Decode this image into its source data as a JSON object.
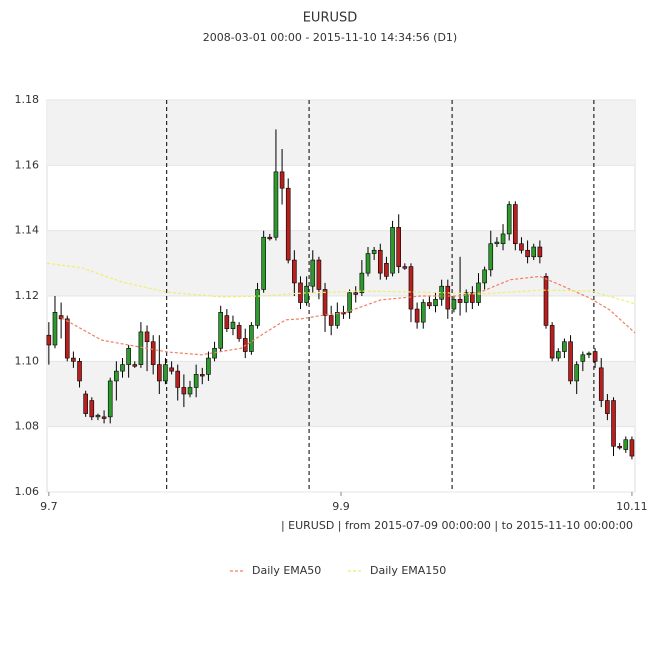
{
  "chart_data": {
    "type": "candlestick",
    "title": "EURUSD",
    "subtitle": "2008-03-01 00:00 - 2015-11-10 14:34:56 (D1)",
    "footer": "| EURUSD | from 2015-07-09 00:00:00 | to 2015-11-10 00:00:00",
    "xlim": [
      -0.3,
      95.5
    ],
    "xticks": [
      {
        "value": 0,
        "label": "9.7"
      },
      {
        "value": 47.6,
        "label": "9.9"
      },
      {
        "value": 95,
        "label": "10.11"
      }
    ],
    "ylim": [
      1.06,
      1.18
    ],
    "yticks": [
      1.06,
      1.08,
      {
        "value": 1.1,
        "label": "1.10"
      },
      1.12,
      1.14,
      1.16,
      1.18
    ],
    "band_grid": true,
    "vlines": [
      19.2,
      42.4,
      65.7,
      88.8
    ],
    "up_color": "#2e9a2e",
    "down_color": "#b82020",
    "open": [
      1.108,
      1.105,
      1.114,
      1.113,
      1.101,
      1.1,
      1.09,
      1.088,
      1.083,
      1.083,
      1.083,
      1.094,
      1.097,
      1.099,
      1.099,
      1.099,
      1.109,
      1.106,
      1.099,
      1.094,
      1.098,
      1.097,
      1.092,
      1.09,
      1.092,
      1.096,
      1.096,
      1.101,
      1.104,
      1.114,
      1.11,
      1.111,
      1.107,
      1.103,
      1.111,
      1.122,
      1.138,
      1.138,
      1.158,
      1.153,
      1.131,
      1.124,
      1.118,
      1.123,
      1.131,
      1.122,
      1.114,
      1.111,
      1.115,
      1.115,
      1.121,
      1.121,
      1.127,
      1.133,
      1.134,
      1.13,
      1.127,
      1.141,
      1.129,
      1.129,
      1.116,
      1.112,
      1.118,
      1.117,
      1.119,
      1.123,
      1.116,
      1.119,
      1.118,
      1.121,
      1.118,
      1.124,
      1.128,
      1.136,
      1.136,
      1.139,
      1.148,
      1.136,
      1.134,
      1.132,
      1.135,
      1.126,
      1.111,
      1.101,
      1.103,
      1.106,
      1.094,
      1.1,
      1.102,
      1.103,
      1.098,
      1.088,
      1.088,
      1.074,
      1.073,
      1.076
    ],
    "high": [
      1.112,
      1.12,
      1.118,
      1.114,
      1.103,
      1.101,
      1.091,
      1.089,
      1.084,
      1.085,
      1.095,
      1.1,
      1.101,
      1.105,
      1.1,
      1.112,
      1.111,
      1.108,
      1.108,
      1.101,
      1.1,
      1.099,
      1.096,
      1.094,
      1.099,
      1.098,
      1.103,
      1.106,
      1.117,
      1.116,
      1.114,
      1.112,
      1.11,
      1.112,
      1.124,
      1.14,
      1.139,
      1.171,
      1.165,
      1.156,
      1.134,
      1.126,
      1.126,
      1.134,
      1.132,
      1.124,
      1.117,
      1.118,
      1.117,
      1.122,
      1.123,
      1.131,
      1.135,
      1.135,
      1.136,
      1.132,
      1.143,
      1.145,
      1.13,
      1.13,
      1.118,
      1.119,
      1.12,
      1.121,
      1.125,
      1.125,
      1.12,
      1.132,
      1.122,
      1.123,
      1.127,
      1.129,
      1.14,
      1.138,
      1.142,
      1.149,
      1.149,
      1.138,
      1.137,
      1.136,
      1.137,
      1.127,
      1.112,
      1.104,
      1.107,
      1.108,
      1.1,
      1.103,
      1.103,
      1.104,
      1.101,
      1.09,
      1.089,
      1.075,
      1.077,
      1.077
    ],
    "low": [
      1.099,
      1.104,
      1.107,
      1.1,
      1.098,
      1.092,
      1.083,
      1.082,
      1.082,
      1.081,
      1.081,
      1.088,
      1.095,
      1.095,
      1.098,
      1.098,
      1.097,
      1.096,
      1.09,
      1.093,
      1.096,
      1.088,
      1.086,
      1.089,
      1.089,
      1.093,
      1.094,
      1.1,
      1.103,
      1.109,
      1.108,
      1.106,
      1.101,
      1.102,
      1.11,
      1.121,
      1.137,
      1.137,
      1.148,
      1.13,
      1.12,
      1.116,
      1.117,
      1.121,
      1.119,
      1.109,
      1.108,
      1.11,
      1.113,
      1.113,
      1.118,
      1.12,
      1.126,
      1.131,
      1.125,
      1.125,
      1.126,
      1.127,
      1.128,
      1.112,
      1.11,
      1.11,
      1.116,
      1.115,
      1.117,
      1.113,
      1.115,
      1.114,
      1.115,
      1.116,
      1.117,
      1.122,
      1.126,
      1.135,
      1.134,
      1.137,
      1.134,
      1.133,
      1.13,
      1.131,
      1.13,
      1.11,
      1.1,
      1.1,
      1.101,
      1.093,
      1.09,
      1.097,
      1.101,
      1.098,
      1.086,
      1.082,
      1.071,
      1.073,
      1.072,
      1.07
    ],
    "close": [
      1.105,
      1.115,
      1.113,
      1.101,
      1.1,
      1.094,
      1.084,
      1.083,
      1.0835,
      1.0825,
      1.094,
      1.097,
      1.099,
      1.104,
      1.0985,
      1.109,
      1.106,
      1.099,
      1.094,
      1.099,
      1.097,
      1.092,
      1.09,
      1.092,
      1.096,
      1.0955,
      1.101,
      1.104,
      1.115,
      1.11,
      1.112,
      1.107,
      1.103,
      1.111,
      1.122,
      1.138,
      1.1375,
      1.158,
      1.153,
      1.131,
      1.124,
      1.118,
      1.123,
      1.131,
      1.122,
      1.114,
      1.111,
      1.115,
      1.1145,
      1.121,
      1.1205,
      1.127,
      1.133,
      1.134,
      1.127,
      1.126,
      1.141,
      1.129,
      1.1285,
      1.116,
      1.112,
      1.118,
      1.117,
      1.119,
      1.123,
      1.116,
      1.119,
      1.118,
      1.121,
      1.118,
      1.124,
      1.128,
      1.136,
      1.1365,
      1.139,
      1.148,
      1.136,
      1.134,
      1.132,
      1.135,
      1.132,
      1.111,
      1.101,
      1.103,
      1.106,
      1.094,
      1.099,
      1.102,
      1.1025,
      1.1,
      1.088,
      1.084,
      1.074,
      1.0735,
      1.076,
      1.071
    ],
    "series": [
      {
        "name": "Daily EMA50",
        "color": "#f08060",
        "x": [
          2.1,
          8.6,
          19.2,
          24.8,
          31.3,
          34.6,
          38.6,
          41.1,
          44.3,
          48.4,
          54.1,
          60.6,
          67.0,
          70.3,
          75.2,
          80.0,
          83.3,
          88.1,
          91.4,
          95.5
        ],
        "values": [
          1.1133,
          1.1065,
          1.1029,
          1.102,
          1.104,
          1.108,
          1.1127,
          1.113,
          1.114,
          1.115,
          1.1188,
          1.12,
          1.12,
          1.1212,
          1.125,
          1.126,
          1.1234,
          1.1194,
          1.1157,
          1.1087
        ]
      },
      {
        "name": "Daily EMA150",
        "color": "#eeee70",
        "x": [
          -0.3,
          5.4,
          11.9,
          19.2,
          28.2,
          34.7,
          41.2,
          51,
          60.7,
          70.5,
          80.3,
          88.4,
          95.5
        ],
        "values": [
          1.13,
          1.1286,
          1.1243,
          1.1212,
          1.1197,
          1.12,
          1.1209,
          1.1215,
          1.1212,
          1.1206,
          1.1218,
          1.1215,
          1.1176
        ]
      }
    ]
  }
}
